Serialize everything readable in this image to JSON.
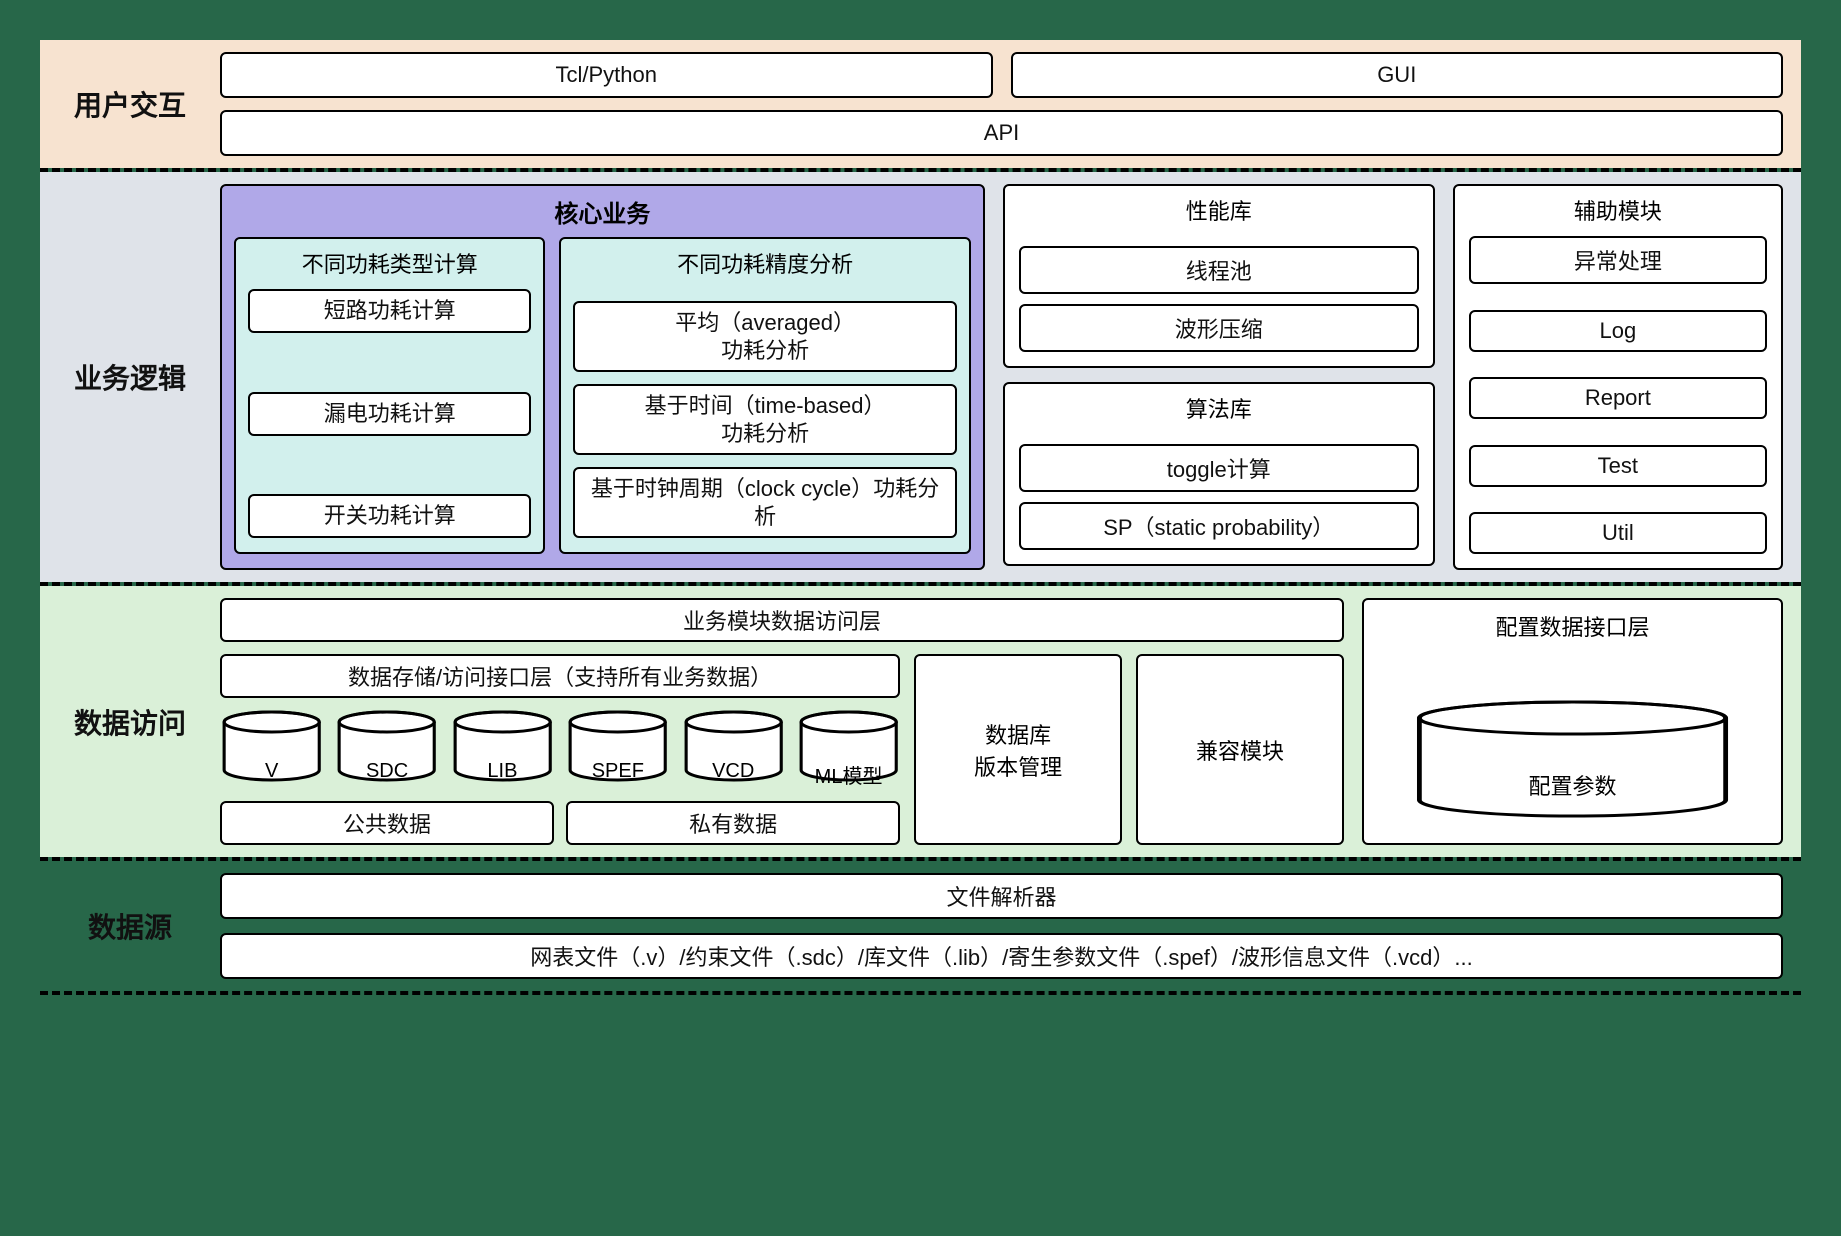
{
  "colors": {
    "page_bg": "#276749",
    "user_bg": "#f7e3d0",
    "logic_bg": "#dfe3e9",
    "data_bg": "#daf0d8",
    "core_bg": "#b0a8e8",
    "core_col_bg": "#d2f0ed",
    "box_bg": "#ffffff",
    "border": "#000000"
  },
  "fonts": {
    "label_size_pt": 21,
    "box_size_pt": 17
  },
  "layers": {
    "user": {
      "label": "用户交互"
    },
    "logic": {
      "label": "业务逻辑"
    },
    "data": {
      "label": "数据访问"
    },
    "source": {
      "label": "数据源"
    }
  },
  "user": {
    "top": [
      "Tcl/Python",
      "GUI"
    ],
    "api": "API"
  },
  "logic": {
    "core": {
      "title": "核心业务",
      "col_a": {
        "title": "不同功耗类型计算",
        "items": [
          "短路功耗计算",
          "漏电功耗计算",
          "开关功耗计算"
        ]
      },
      "col_b": {
        "title": "不同功耗精度分析",
        "items": [
          "平均（averaged）\n功耗分析",
          "基于时间（time-based）\n功耗分析",
          "基于时钟周期（clock cycle）功耗分析"
        ]
      }
    },
    "perf": {
      "title": "性能库",
      "items": [
        "线程池",
        "波形压缩"
      ]
    },
    "algo": {
      "title": "算法库",
      "items": [
        "toggle计算",
        "SP（static probability）"
      ]
    },
    "aux": {
      "title": "辅助模块",
      "items": [
        "异常处理",
        "Log",
        "Report",
        "Test",
        "Util"
      ]
    }
  },
  "data": {
    "biz_access": "业务模块数据访问层",
    "storage_title": "数据存储/访问接口层（支持所有业务数据）",
    "cylinders": [
      "V",
      "SDC",
      "LIB",
      "SPEF",
      "VCD",
      "ML模型"
    ],
    "bottom": [
      "公共数据",
      "私有数据"
    ],
    "db_version": "数据库\n版本管理",
    "compat": "兼容模块",
    "config_title": "配置数据接口层",
    "config_cyl": "配置参数"
  },
  "source": {
    "parser": "文件解析器",
    "files": "网表文件（.v）/约束文件（.sdc）/库文件（.lib）/寄生参数文件（.spef）/波形信息文件（.vcd）..."
  }
}
